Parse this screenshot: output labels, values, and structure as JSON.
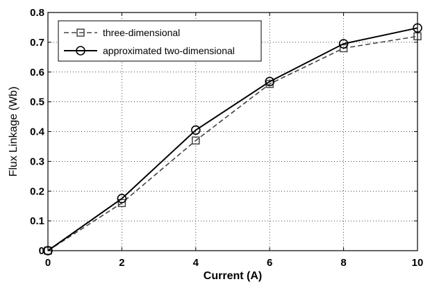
{
  "chart_data": {
    "type": "line",
    "title": "",
    "xlabel": "Current (A)",
    "ylabel": "Flux Linkage (Wb)",
    "xlim": [
      0,
      10
    ],
    "ylim": [
      0,
      0.8
    ],
    "xticks": [
      0,
      2,
      4,
      6,
      8,
      10
    ],
    "yticks": [
      0,
      0.1,
      0.2,
      0.3,
      0.4,
      0.5,
      0.6,
      0.7,
      0.8
    ],
    "xtick_labels": [
      "0",
      "2",
      "4",
      "6",
      "8",
      "10"
    ],
    "ytick_labels": [
      "0",
      "0.1",
      "0.2",
      "0.3",
      "0.4",
      "0.5",
      "0.6",
      "0.7",
      "0.8"
    ],
    "grid": true,
    "legend_position": "top-left",
    "series": [
      {
        "name": "three-dimensional",
        "x": [
          0,
          2,
          4,
          6,
          8,
          10
        ],
        "y": [
          0,
          0.16,
          0.37,
          0.56,
          0.68,
          0.72
        ],
        "line_style": "dashed",
        "marker": "square",
        "color": "#444444"
      },
      {
        "name": "approximated two-dimensional",
        "x": [
          0,
          2,
          4,
          6,
          8,
          10
        ],
        "y": [
          0,
          0.175,
          0.405,
          0.568,
          0.695,
          0.748
        ],
        "line_style": "solid",
        "marker": "circle",
        "color": "#000000"
      }
    ]
  }
}
